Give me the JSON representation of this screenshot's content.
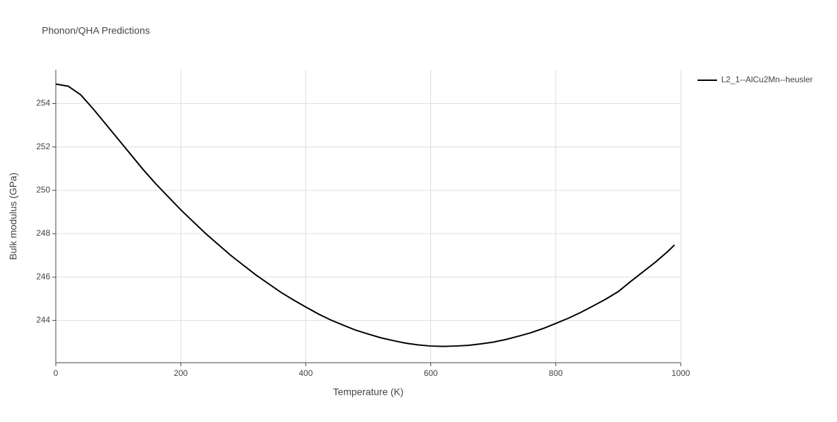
{
  "chart_data": {
    "type": "line",
    "title": "Phonon/QHA Predictions",
    "x_label": "Temperature (K)",
    "y_label": "Bulk modulus (GPa)",
    "x": [
      0,
      20,
      40,
      60,
      80,
      100,
      120,
      140,
      160,
      180,
      200,
      220,
      240,
      260,
      280,
      300,
      320,
      340,
      360,
      380,
      400,
      420,
      440,
      460,
      480,
      500,
      520,
      540,
      560,
      580,
      600,
      620,
      640,
      660,
      680,
      700,
      720,
      740,
      760,
      780,
      800,
      820,
      840,
      860,
      880,
      900,
      920,
      940,
      960,
      980,
      990
    ],
    "series": [
      {
        "name": "L2_1--AlCu2Mn--heusler",
        "color": "#000000",
        "values": [
          254.9,
          254.8,
          254.4,
          253.75,
          253.05,
          252.35,
          251.65,
          250.95,
          250.3,
          249.7,
          249.1,
          248.55,
          248.0,
          247.5,
          247.0,
          246.55,
          246.1,
          245.7,
          245.3,
          244.95,
          244.62,
          244.3,
          244.02,
          243.78,
          243.55,
          243.37,
          243.2,
          243.07,
          242.95,
          242.87,
          242.82,
          242.8,
          242.82,
          242.85,
          242.92,
          243.0,
          243.12,
          243.27,
          243.43,
          243.63,
          243.86,
          244.1,
          244.37,
          244.67,
          244.98,
          245.33,
          245.8,
          246.25,
          246.7,
          247.2,
          247.48
        ]
      }
    ],
    "xlim": [
      0,
      1000
    ],
    "xticks": [
      0,
      200,
      400,
      600,
      800,
      1000
    ],
    "ylim": [
      242.05,
      255.56
    ],
    "yticks": [
      244,
      246,
      248,
      250,
      252,
      254
    ],
    "grid": true,
    "legend": "right"
  }
}
